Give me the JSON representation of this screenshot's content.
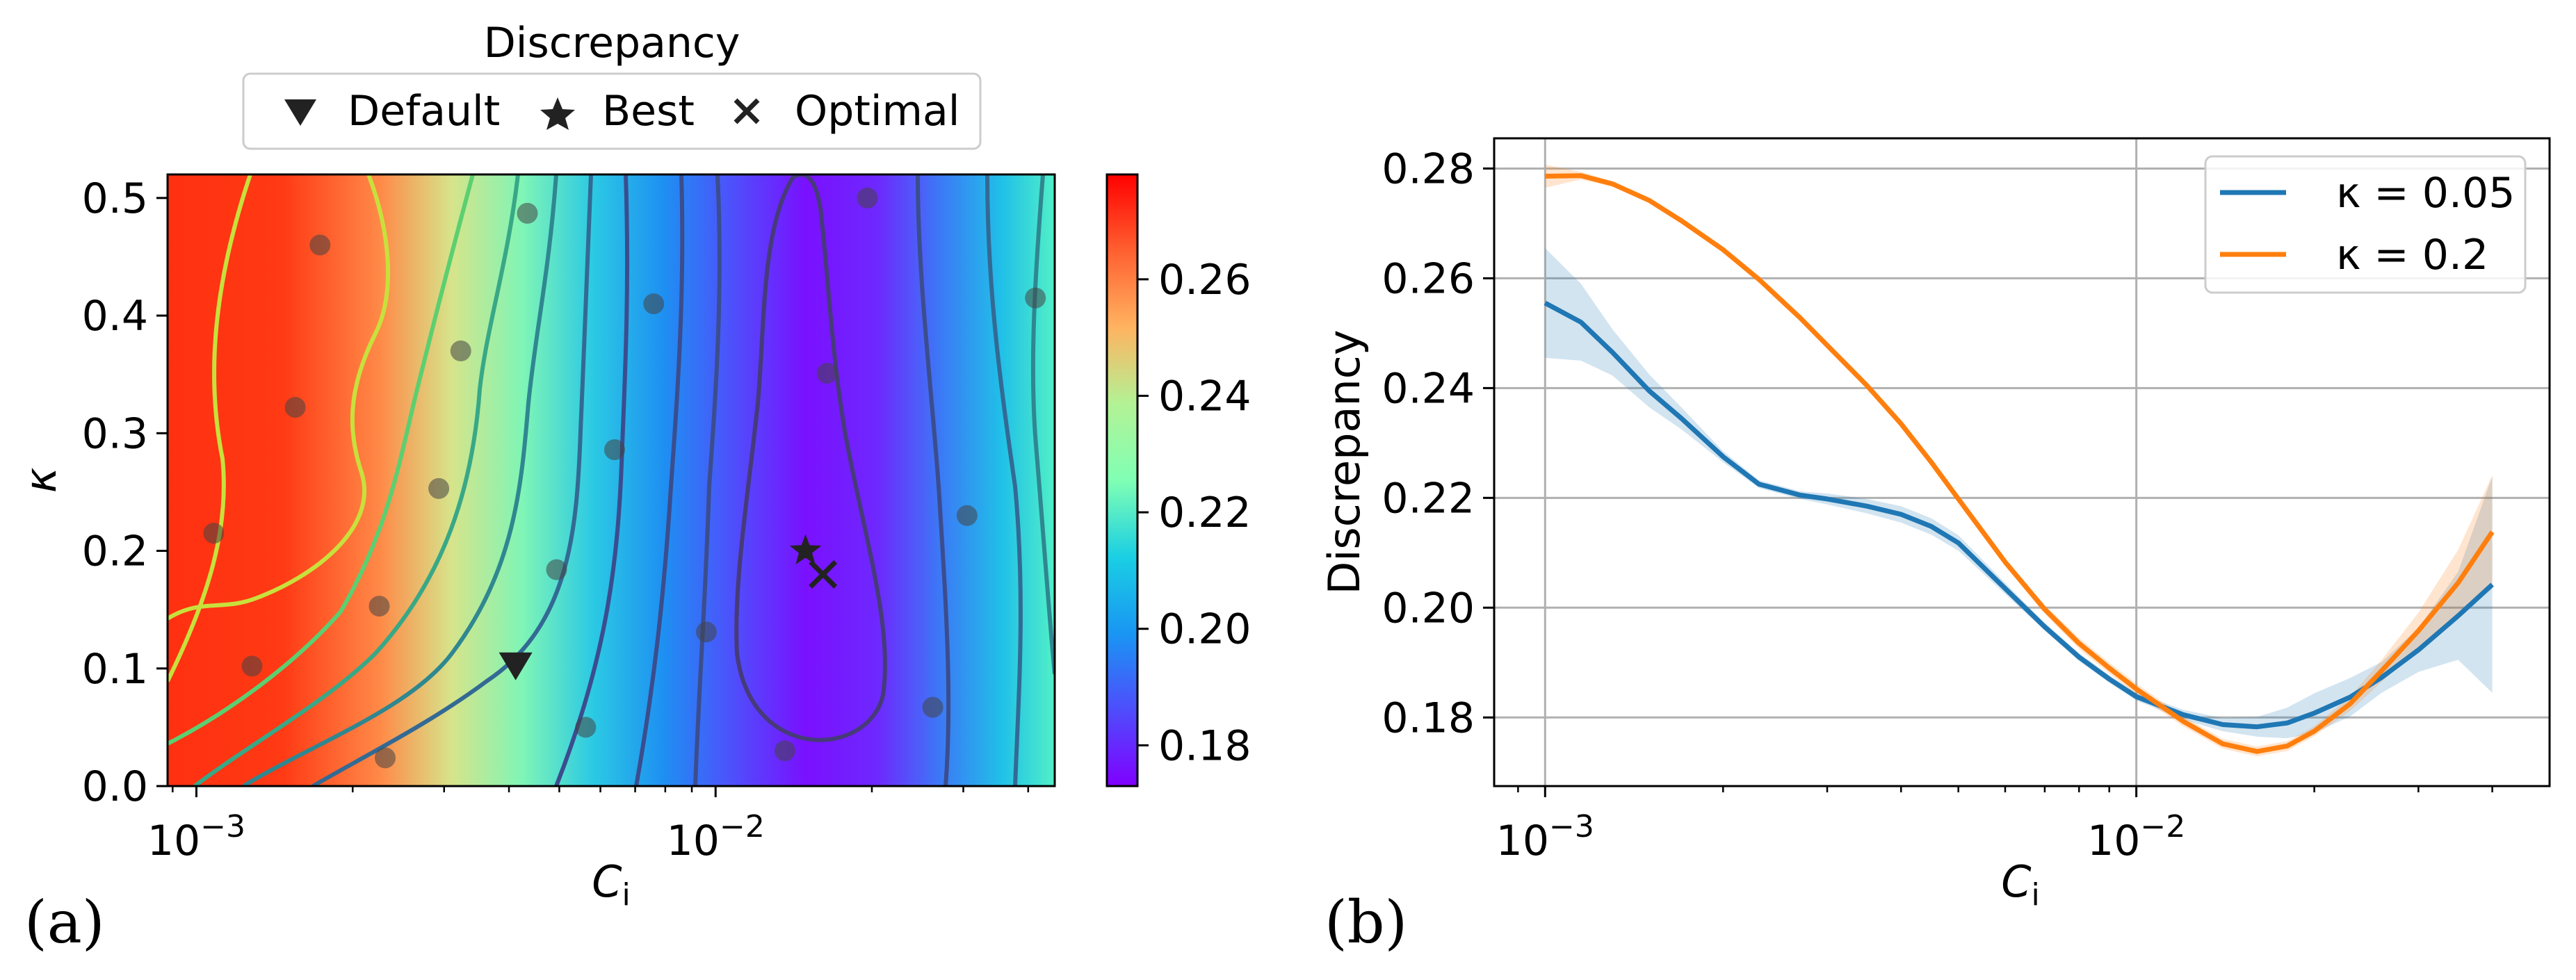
{
  "chart_data": [
    {
      "id": "a",
      "type": "heatmap",
      "panel_label": "(a)",
      "xlabel": "C",
      "xlabel_sub": "i",
      "ylabel": "κ",
      "xscale": "log",
      "xlim": [
        0.00088,
        0.045
      ],
      "ylim": [
        0.0,
        0.52
      ],
      "x_major_ticks": [
        {
          "value": 0.001,
          "base": "10",
          "exp": "−3"
        },
        {
          "value": 0.01,
          "base": "10",
          "exp": "−2"
        }
      ],
      "y_ticks": [
        {
          "value": 0.0,
          "label": "0.0"
        },
        {
          "value": 0.1,
          "label": "0.1"
        },
        {
          "value": 0.2,
          "label": "0.2"
        },
        {
          "value": 0.3,
          "label": "0.3"
        },
        {
          "value": 0.4,
          "label": "0.4"
        },
        {
          "value": 0.5,
          "label": "0.5"
        }
      ],
      "legend_title": "Discrepancy",
      "legend_placement": "top-center",
      "legend": [
        {
          "marker": "down-triangle",
          "label": "Default"
        },
        {
          "marker": "star",
          "label": "Best"
        },
        {
          "marker": "x",
          "label": "Optimal"
        }
      ],
      "colorbar": {
        "colormap": "rainbow",
        "range": [
          0.173,
          0.278
        ],
        "ticks": [
          {
            "value": 0.18,
            "label": "0.18"
          },
          {
            "value": 0.2,
            "label": "0.20"
          },
          {
            "value": 0.22,
            "label": "0.22"
          },
          {
            "value": 0.24,
            "label": "0.24"
          },
          {
            "value": 0.26,
            "label": "0.26"
          }
        ]
      },
      "sample_points": [
        [
          0.00108,
          0.215
        ],
        [
          0.00128,
          0.102
        ],
        [
          0.00155,
          0.322
        ],
        [
          0.00173,
          0.46
        ],
        [
          0.00225,
          0.153
        ],
        [
          0.00231,
          0.024
        ],
        [
          0.00293,
          0.253
        ],
        [
          0.00323,
          0.37
        ],
        [
          0.00434,
          0.487
        ],
        [
          0.00494,
          0.184
        ],
        [
          0.00562,
          0.05
        ],
        [
          0.00639,
          0.286
        ],
        [
          0.0076,
          0.41
        ],
        [
          0.0096,
          0.131
        ],
        [
          0.0136,
          0.03
        ],
        [
          0.0164,
          0.351
        ],
        [
          0.0196,
          0.5
        ],
        [
          0.0262,
          0.067
        ],
        [
          0.0305,
          0.23
        ],
        [
          0.0413,
          0.415
        ]
      ],
      "default_point": [
        0.00412,
        0.103
      ],
      "best_point": [
        0.0149,
        0.2
      ],
      "optimal_point": [
        0.0161,
        0.18
      ]
    },
    {
      "id": "b",
      "type": "line",
      "panel_label": "(b)",
      "xlabel": "C",
      "xlabel_sub": "i",
      "ylabel": "Discrepancy",
      "xscale": "log",
      "xlim": [
        0.00082,
        0.05
      ],
      "ylim": [
        0.1675,
        0.2855
      ],
      "grid": true,
      "legend_placement": "top-right",
      "x_major_ticks": [
        {
          "value": 0.001,
          "base": "10",
          "exp": "−3"
        },
        {
          "value": 0.01,
          "base": "10",
          "exp": "−2"
        }
      ],
      "y_ticks": [
        {
          "value": 0.18,
          "label": "0.18"
        },
        {
          "value": 0.2,
          "label": "0.20"
        },
        {
          "value": 0.22,
          "label": "0.22"
        },
        {
          "value": 0.24,
          "label": "0.24"
        },
        {
          "value": 0.26,
          "label": "0.26"
        },
        {
          "value": 0.28,
          "label": "0.28"
        }
      ],
      "series": [
        {
          "name": "κ = 0.05",
          "legend_label": "κ = 0.05",
          "color": "#1f77b4",
          "x": [
            0.001,
            0.00115,
            0.0013,
            0.0015,
            0.0017,
            0.002,
            0.0023,
            0.0027,
            0.003,
            0.0035,
            0.004,
            0.0045,
            0.005,
            0.006,
            0.007,
            0.008,
            0.009,
            0.01,
            0.012,
            0.014,
            0.016,
            0.018,
            0.02,
            0.023,
            0.026,
            0.03,
            0.035,
            0.04
          ],
          "y": [
            0.2555,
            0.252,
            0.2465,
            0.2395,
            0.2345,
            0.2275,
            0.2225,
            0.2205,
            0.2198,
            0.2185,
            0.217,
            0.2148,
            0.2118,
            0.2035,
            0.1965,
            0.191,
            0.187,
            0.1838,
            0.1805,
            0.1787,
            0.1783,
            0.179,
            0.1808,
            0.1837,
            0.1873,
            0.1923,
            0.1985,
            0.2042
          ],
          "lower": [
            0.2455,
            0.245,
            0.2423,
            0.2365,
            0.2325,
            0.2265,
            0.2218,
            0.2198,
            0.2188,
            0.2172,
            0.2155,
            0.2133,
            0.2104,
            0.2025,
            0.1958,
            0.1903,
            0.1863,
            0.1831,
            0.1796,
            0.1775,
            0.1765,
            0.1762,
            0.1772,
            0.1802,
            0.1845,
            0.1883,
            0.1905,
            0.1845
          ],
          "upper": [
            0.2655,
            0.259,
            0.2507,
            0.2425,
            0.2365,
            0.2285,
            0.2232,
            0.2212,
            0.2208,
            0.2198,
            0.2185,
            0.2163,
            0.2132,
            0.2045,
            0.1972,
            0.1917,
            0.1877,
            0.1845,
            0.1814,
            0.1799,
            0.1801,
            0.1818,
            0.1844,
            0.1872,
            0.1901,
            0.1963,
            0.2065,
            0.2239
          ]
        },
        {
          "name": "κ = 0.2",
          "legend_label": "κ = 0.2",
          "color": "#ff7f0e",
          "x": [
            0.001,
            0.00115,
            0.0013,
            0.0015,
            0.0017,
            0.002,
            0.0023,
            0.0027,
            0.003,
            0.0035,
            0.004,
            0.0045,
            0.005,
            0.006,
            0.007,
            0.008,
            0.009,
            0.01,
            0.012,
            0.014,
            0.016,
            0.018,
            0.02,
            0.023,
            0.026,
            0.03,
            0.035,
            0.04
          ],
          "y": [
            0.2786,
            0.2787,
            0.2772,
            0.2742,
            0.2705,
            0.2652,
            0.2598,
            0.2528,
            0.2478,
            0.2405,
            0.2335,
            0.2265,
            0.2198,
            0.2083,
            0.1997,
            0.1935,
            0.189,
            0.1852,
            0.1793,
            0.1752,
            0.1738,
            0.1748,
            0.1775,
            0.1825,
            0.1885,
            0.1958,
            0.2045,
            0.2138
          ],
          "lower": [
            0.2765,
            0.278,
            0.2767,
            0.2738,
            0.2702,
            0.2649,
            0.2595,
            0.2525,
            0.2475,
            0.2402,
            0.2332,
            0.2261,
            0.2193,
            0.2077,
            0.1989,
            0.1925,
            0.188,
            0.1842,
            0.1784,
            0.1743,
            0.1729,
            0.1739,
            0.1766,
            0.1812,
            0.1865,
            0.1925,
            0.1985,
            0.2035
          ],
          "upper": [
            0.2807,
            0.2794,
            0.2777,
            0.2746,
            0.2708,
            0.2655,
            0.2601,
            0.2531,
            0.2481,
            0.2408,
            0.2338,
            0.2269,
            0.2203,
            0.2089,
            0.2005,
            0.1945,
            0.19,
            0.1862,
            0.1802,
            0.1761,
            0.1747,
            0.1757,
            0.1784,
            0.1838,
            0.1905,
            0.1991,
            0.2105,
            0.2241
          ]
        }
      ]
    }
  ]
}
